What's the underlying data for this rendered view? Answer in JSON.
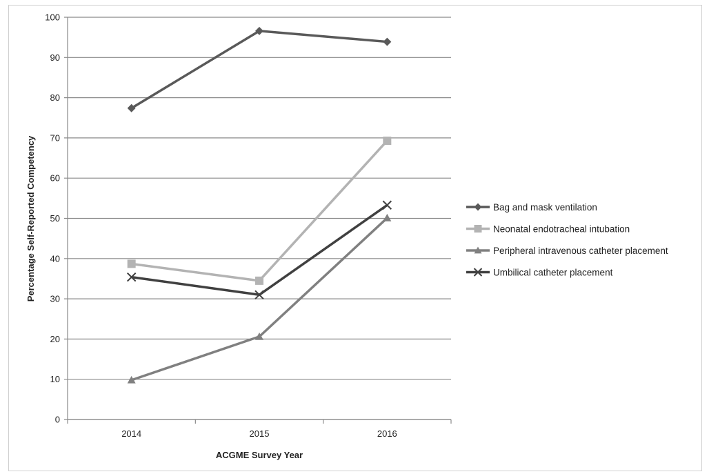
{
  "chart_data": {
    "type": "line",
    "title": "",
    "xlabel": "ACGME Survey Year",
    "ylabel": "Percentage Self-Reported Competency",
    "categories": [
      "2014",
      "2015",
      "2016"
    ],
    "ylim": [
      0,
      100
    ],
    "yticks": [
      0,
      10,
      20,
      30,
      40,
      50,
      60,
      70,
      80,
      90,
      100
    ],
    "grid": true,
    "legend_position": "right",
    "series": [
      {
        "name": "Bag and mask ventilation",
        "values": [
          77.4,
          96.6,
          93.9
        ],
        "color": "#595959",
        "marker": "diamond"
      },
      {
        "name": "Neonatal endotracheal intubation",
        "values": [
          38.7,
          34.5,
          69.3
        ],
        "color": "#b3b3b3",
        "marker": "square"
      },
      {
        "name": "Peripheral intravenous catheter placement",
        "values": [
          9.8,
          20.6,
          50.1
        ],
        "color": "#808080",
        "marker": "triangle"
      },
      {
        "name": "Umbilical catheter placement",
        "values": [
          35.4,
          31.0,
          53.3
        ],
        "color": "#404040",
        "marker": "x"
      }
    ]
  }
}
